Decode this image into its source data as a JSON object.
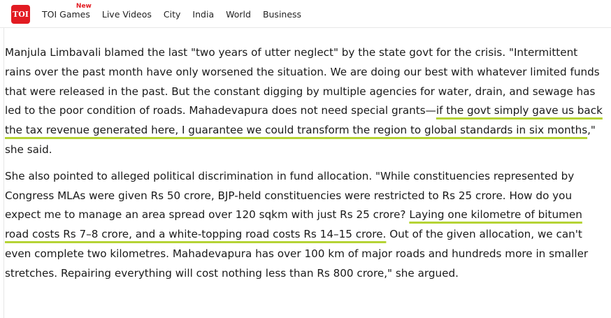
{
  "logo": {
    "text": "TOI"
  },
  "nav": {
    "items": [
      {
        "label": "TOI Games",
        "badge": "New"
      },
      {
        "label": "Live Videos"
      },
      {
        "label": "City"
      },
      {
        "label": "India"
      },
      {
        "label": "World"
      },
      {
        "label": "Business"
      }
    ]
  },
  "article": {
    "paragraphs": [
      {
        "before": "Manjula Limbavali blamed the last \"two years of utter neglect\" by the state govt for the crisis. \"Intermittent rains over the past month have only worsened the situation. We are doing our best with whatever limited funds that were released in the past. But the constant digging by multiple agencies for water, drain, and sewage has led to the poor condition of roads. Mahadevapura does not need special grants—",
        "highlight": "if the govt simply gave us back the tax revenue generated here, I guarantee we could transform the region to global standards in six months",
        "after": ",\" she said."
      },
      {
        "before": "She also pointed to alleged political discrimination in fund allocation. \"While constituencies represented by Congress MLAs were given Rs 50 crore, BJP-held constituencies were restricted to Rs 25 crore. How do you expect me to manage an area spread over 120 sqkm with just Rs 25 crore? ",
        "highlight": "Laying one kilometre of bitumen road costs Rs 7–8 crore, and a white-topping road costs Rs 14–15 crore.",
        "after": " Out of the given allocation, we can't even complete two kilometres. Mahadevapura has over 100 km of major roads and hundreds more in smaller stretches. Repairing everything will cost nothing less than Rs 800 crore,\" she argued."
      }
    ]
  },
  "colors": {
    "brand_red": "#e21b22",
    "highlight_underline": "#b5d335"
  }
}
